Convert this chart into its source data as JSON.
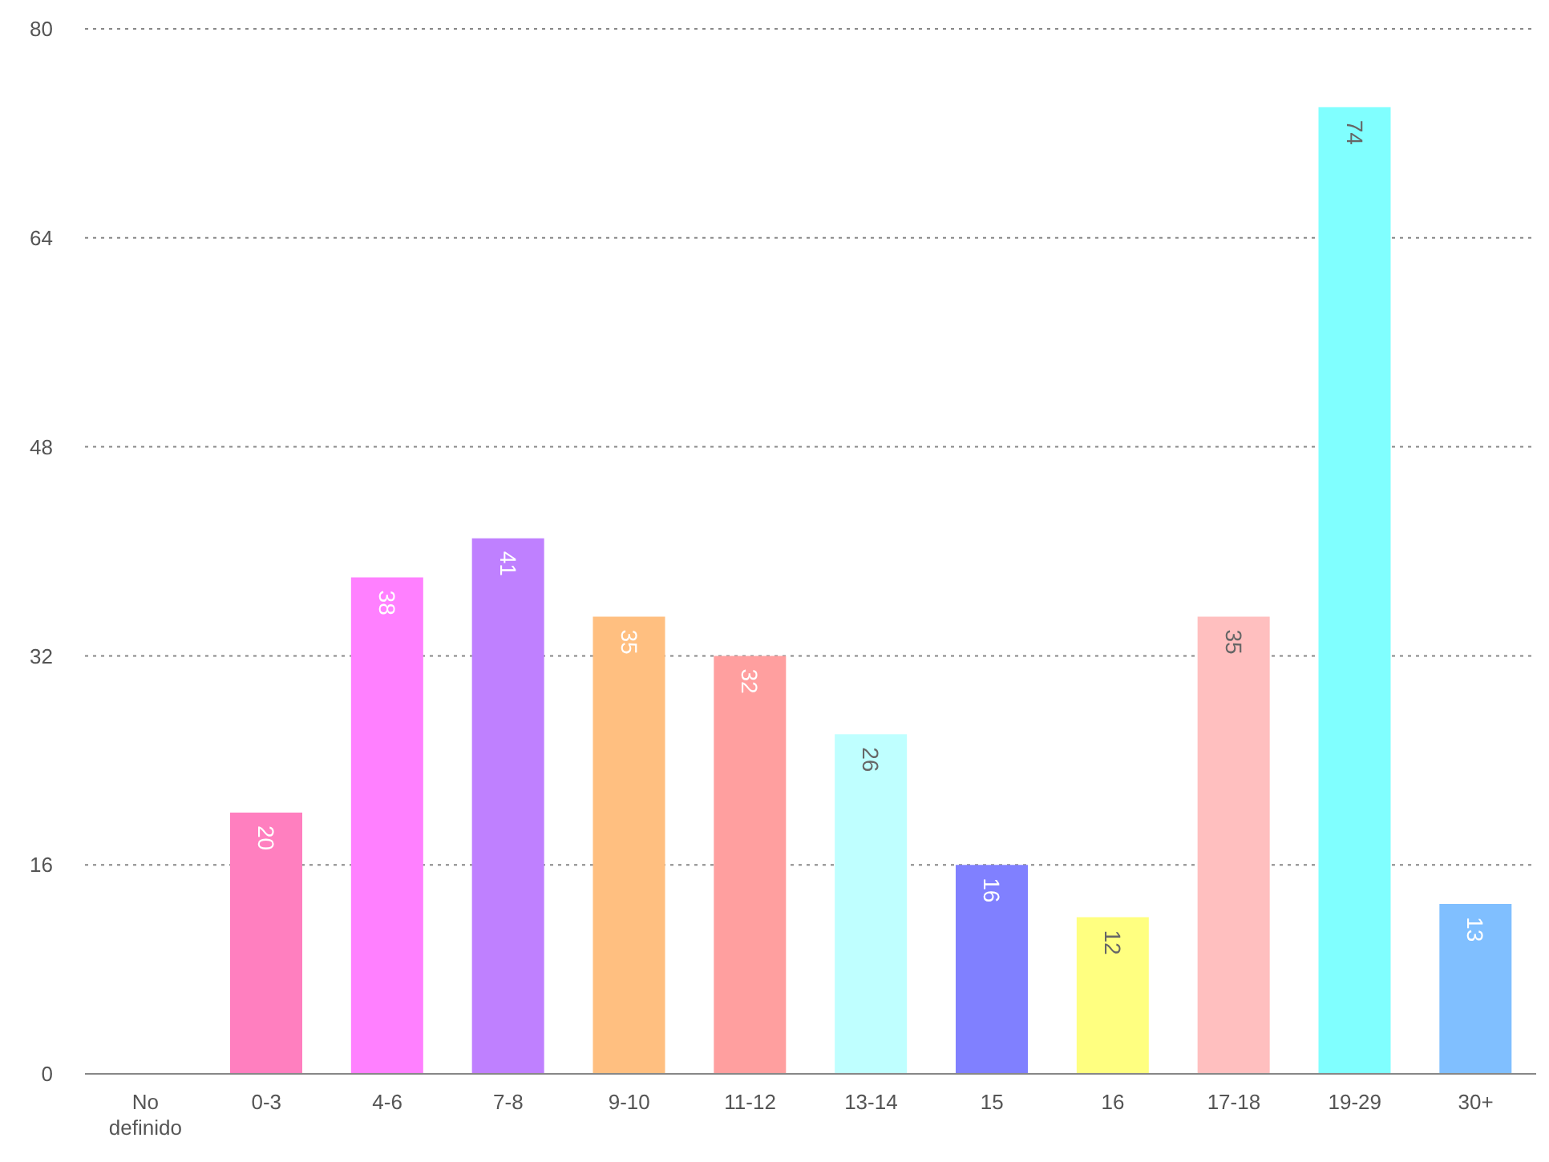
{
  "chart_data": {
    "type": "bar",
    "categories": [
      "No definido",
      "0-3",
      "4-6",
      "7-8",
      "9-10",
      "11-12",
      "13-14",
      "15",
      "16",
      "17-18",
      "19-29",
      "30+"
    ],
    "values": [
      null,
      20,
      38,
      41,
      35,
      32,
      26,
      16,
      12,
      35,
      74,
      13
    ],
    "colors": [
      "#ff7fbf",
      "#ff7fbf",
      "#ff80ff",
      "#bf80ff",
      "#ffbf80",
      "#ff9f9f",
      "#bfffff",
      "#8080ff",
      "#ffff80",
      "#ffbfbf",
      "#80ffff",
      "#80bfff"
    ],
    "ylim": [
      0,
      80
    ],
    "yticks": [
      0,
      16,
      32,
      48,
      64,
      80
    ],
    "grid": "y",
    "data_labels": true
  }
}
